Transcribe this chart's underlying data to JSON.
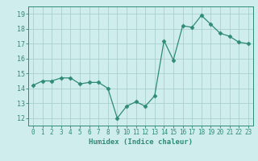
{
  "x": [
    0,
    1,
    2,
    3,
    4,
    5,
    6,
    7,
    8,
    9,
    10,
    11,
    12,
    13,
    14,
    15,
    16,
    17,
    18,
    19,
    20,
    21,
    22,
    23
  ],
  "y": [
    14.2,
    14.5,
    14.5,
    14.7,
    14.7,
    14.3,
    14.4,
    14.4,
    14.0,
    12.0,
    12.8,
    13.1,
    12.8,
    13.5,
    17.2,
    15.9,
    18.2,
    18.1,
    18.9,
    18.3,
    17.7,
    17.5,
    17.1,
    17.0
  ],
  "xlabel": "Humidex (Indice chaleur)",
  "xlim": [
    -0.5,
    23.5
  ],
  "ylim": [
    11.5,
    19.5
  ],
  "yticks": [
    12,
    13,
    14,
    15,
    16,
    17,
    18,
    19
  ],
  "xticks": [
    0,
    1,
    2,
    3,
    4,
    5,
    6,
    7,
    8,
    9,
    10,
    11,
    12,
    13,
    14,
    15,
    16,
    17,
    18,
    19,
    20,
    21,
    22,
    23
  ],
  "line_color": "#2e8b74",
  "marker": "D",
  "marker_size": 2.5,
  "bg_color": "#d0eded",
  "grid_color": "#aacece",
  "axis_color": "#2e8b74",
  "tick_color": "#2e8b74",
  "label_color": "#2e8b74"
}
